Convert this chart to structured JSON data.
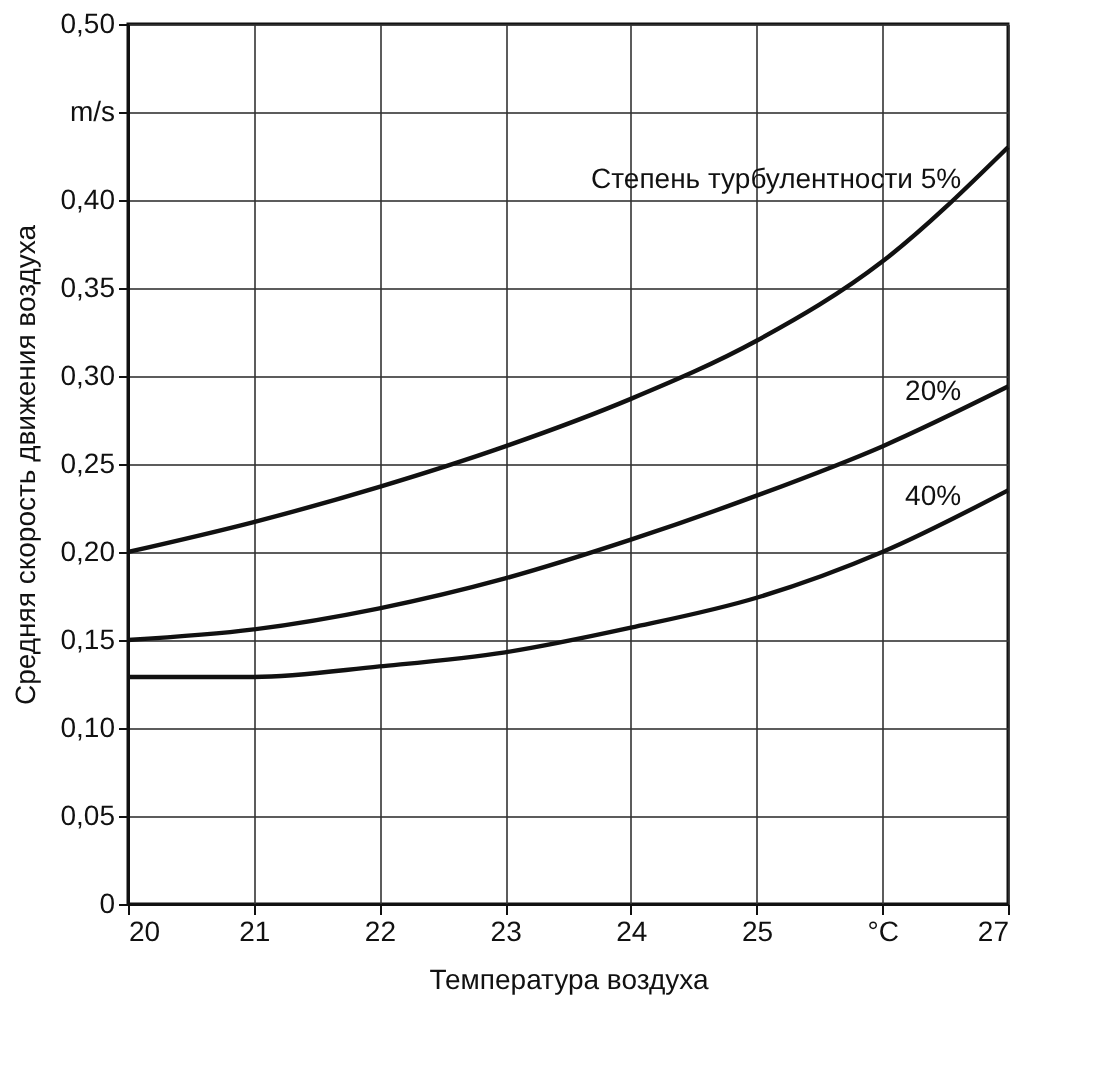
{
  "chart_data": {
    "type": "line",
    "xlabel": "Температура воздуха",
    "ylabel": "Средняя скорость движения воздуха",
    "x": [
      20,
      21,
      22,
      23,
      24,
      25,
      26,
      27
    ],
    "series": [
      {
        "name": "Степень турбулентности 5%",
        "color": "#111111",
        "values": [
          0.2,
          0.217,
          0.237,
          0.26,
          0.287,
          0.32,
          0.365,
          0.43
        ]
      },
      {
        "name": "20%",
        "color": "#111111",
        "values": [
          0.15,
          0.156,
          0.168,
          0.185,
          0.207,
          0.232,
          0.26,
          0.294
        ]
      },
      {
        "name": "40%",
        "color": "#111111",
        "values": [
          0.129,
          0.129,
          0.135,
          0.143,
          0.157,
          0.174,
          0.2,
          0.235
        ]
      }
    ],
    "xlim": [
      20,
      27
    ],
    "xticks": [
      20,
      21,
      22,
      23,
      24,
      25,
      {
        "value": 26,
        "label": "°C"
      },
      27
    ],
    "ylim": [
      0,
      0.5
    ],
    "yticks": [
      0,
      {
        "value": 0.05,
        "label": "0,05"
      },
      {
        "value": 0.1,
        "label": "0,10"
      },
      {
        "value": 0.15,
        "label": "0,15"
      },
      {
        "value": 0.2,
        "label": "0,20"
      },
      {
        "value": 0.25,
        "label": "0,25"
      },
      {
        "value": 0.3,
        "label": "0,30"
      },
      {
        "value": 0.35,
        "label": "0,35"
      },
      {
        "value": 0.4,
        "label": "0,40"
      },
      {
        "value": 0.45,
        "label": "m/s"
      },
      {
        "value": 0.5,
        "label": "0,50"
      }
    ],
    "grid": true,
    "legend": false,
    "marker": "none",
    "line_style": "solid"
  }
}
